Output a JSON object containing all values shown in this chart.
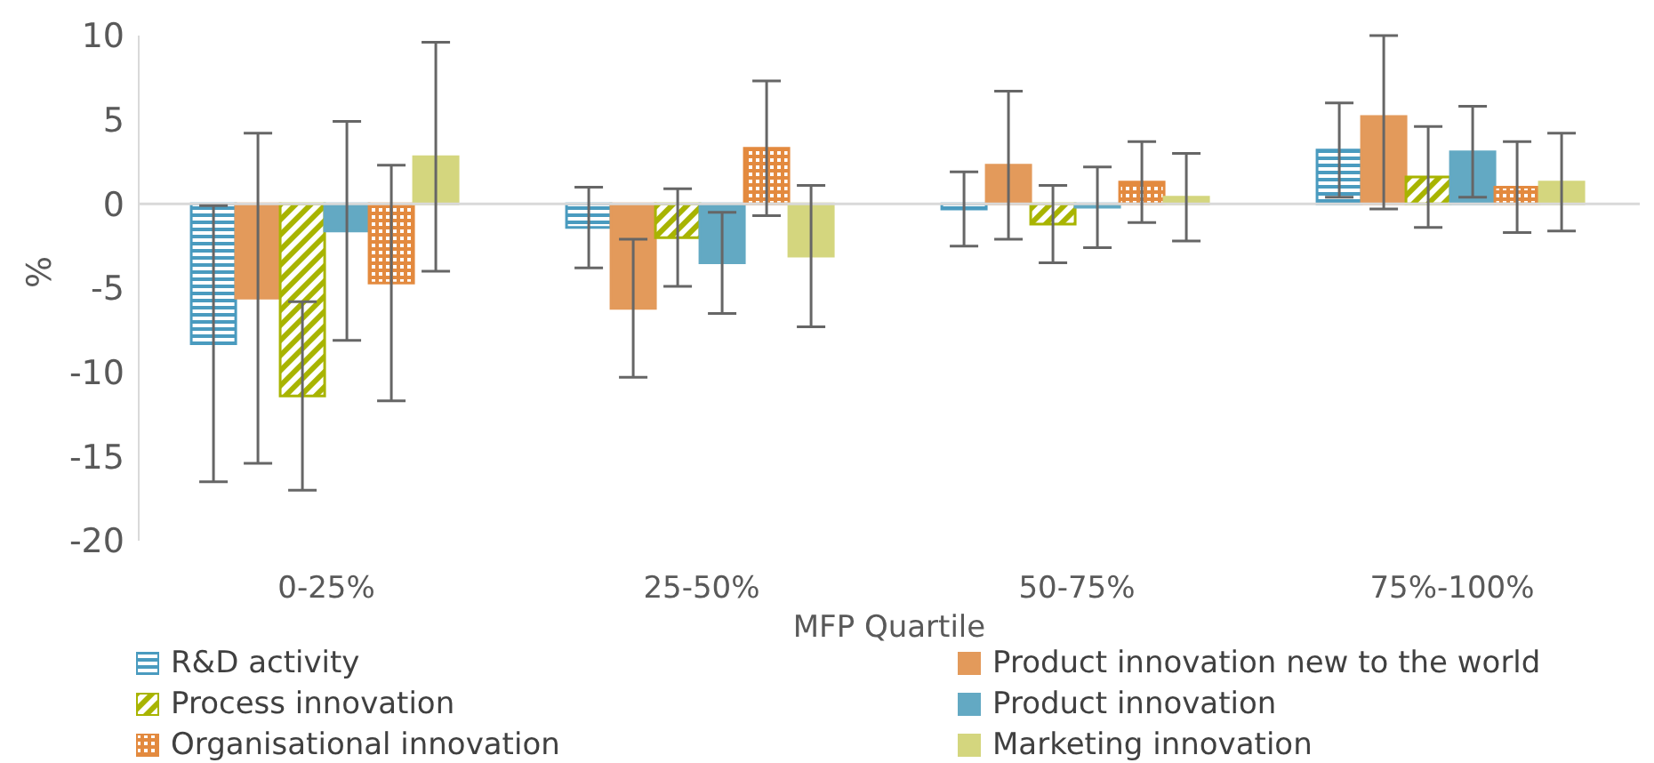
{
  "chart_data": {
    "type": "bar",
    "xlabel": "MFP Quartile",
    "ylabel": "%",
    "categories": [
      "0-25%",
      "25-50%",
      "50-75%",
      "75%-100%"
    ],
    "series": [
      {
        "name": "R&D activity",
        "color": "#4a9bbf",
        "values": [
          -8.3,
          -1.4,
          -0.3,
          3.2
        ],
        "errors": [
          8.2,
          2.4,
          2.2,
          2.8
        ]
      },
      {
        "name": "Product innovation new to the world",
        "color": "#e39a5b",
        "values": [
          -5.6,
          -6.2,
          2.3,
          5.2
        ],
        "errors": [
          9.8,
          4.1,
          4.4,
          [
            -0.3,
            10
          ]
        ]
      },
      {
        "name": "Process innovation",
        "color": "#a8b400",
        "values": [
          -11.4,
          -2.0,
          -1.2,
          1.6
        ],
        "errors": [
          5.6,
          2.9,
          2.3,
          3.0
        ]
      },
      {
        "name": "Product innovation",
        "color": "#63a9c3",
        "values": [
          -1.6,
          -3.5,
          -0.2,
          3.1
        ],
        "errors": [
          6.5,
          3.0,
          2.4,
          2.7
        ]
      },
      {
        "name": "Organisational innovation",
        "color": "#e38a3f",
        "values": [
          -4.7,
          3.3,
          1.3,
          1.0
        ],
        "errors": [
          7.0,
          4.0,
          2.4,
          2.7
        ]
      },
      {
        "name": "Marketing innovation",
        "color": "#d4d67e",
        "values": [
          2.8,
          -3.1,
          0.4,
          1.3
        ],
        "errors": [
          6.8,
          4.2,
          2.6,
          2.9
        ]
      }
    ],
    "ylim": [
      -20,
      10
    ],
    "yticks": [
      -20,
      -15,
      -10,
      -5,
      0,
      5,
      10
    ],
    "ref_lines": [
      {
        "axis": "y",
        "value": 0,
        "color": "#d9d9d9"
      }
    ],
    "legend": "bottom"
  }
}
